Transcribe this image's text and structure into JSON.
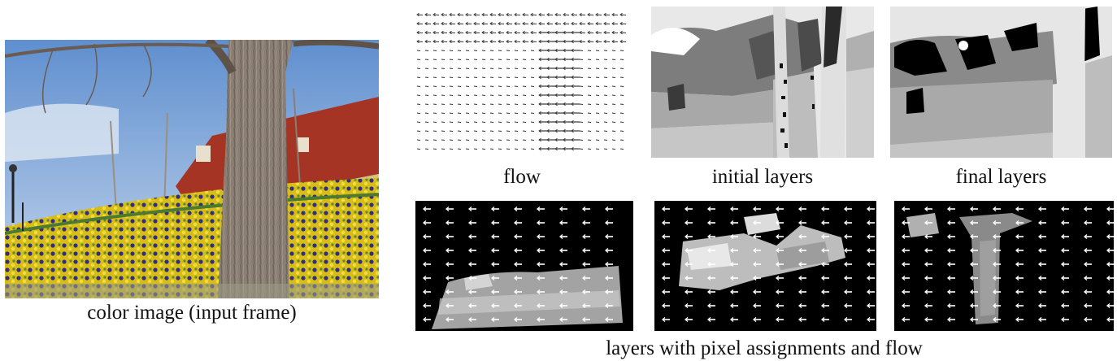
{
  "figure": {
    "input_caption": "color image (input frame)",
    "flow_caption": "flow",
    "initial_caption": "initial layers",
    "final_caption": "final layers",
    "bottom_caption": "layers with pixel assignments and flow"
  },
  "colors": {
    "sky": "#8fb4dd",
    "tree_bark": "#8a7e72",
    "flowers_yellow": "#e3c91a",
    "flowers_blue": "#3a3a8a",
    "roof": "#b03a2a",
    "layer_background": "#000000",
    "flow_arrow": "#ffffff"
  }
}
